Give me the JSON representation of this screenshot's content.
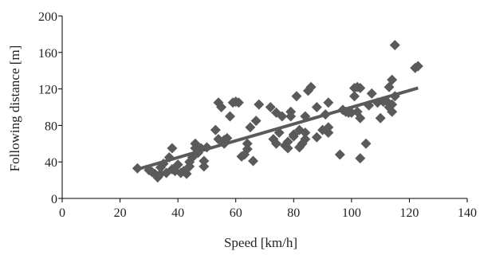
{
  "chart_data": {
    "type": "scatter",
    "title": "",
    "xlabel": "Speed [km/h]",
    "ylabel": "Following distance [m]",
    "xlim": [
      0,
      140
    ],
    "ylim": [
      0,
      200
    ],
    "xticks": [
      "0",
      "20",
      "40",
      "60",
      "80",
      "100",
      "120",
      "140"
    ],
    "yticks": [
      "0",
      "40",
      "80",
      "120",
      "160",
      "200"
    ],
    "grid": false,
    "legend": "none",
    "marker": "diamond",
    "marker_color": "#5a5a5a",
    "trendline_color": "#5a5a5a",
    "series": [
      {
        "points": [
          [
            26,
            33
          ],
          [
            30,
            31
          ],
          [
            31,
            29
          ],
          [
            32,
            27
          ],
          [
            33,
            23
          ],
          [
            34,
            27
          ],
          [
            34,
            34
          ],
          [
            35,
            38
          ],
          [
            36,
            28
          ],
          [
            37,
            45
          ],
          [
            38,
            32
          ],
          [
            38,
            55
          ],
          [
            39,
            30
          ],
          [
            40,
            37
          ],
          [
            41,
            28
          ],
          [
            42,
            30
          ],
          [
            43,
            27
          ],
          [
            44,
            35
          ],
          [
            44,
            40
          ],
          [
            45,
            45
          ],
          [
            46,
            55
          ],
          [
            46,
            60
          ],
          [
            47,
            50
          ],
          [
            48,
            55
          ],
          [
            49,
            35
          ],
          [
            49,
            41
          ],
          [
            50,
            56
          ],
          [
            53,
            75
          ],
          [
            54,
            65
          ],
          [
            54,
            105
          ],
          [
            55,
            100
          ],
          [
            56,
            64
          ],
          [
            56,
            60
          ],
          [
            57,
            66
          ],
          [
            58,
            90
          ],
          [
            59,
            105
          ],
          [
            60,
            106
          ],
          [
            61,
            105
          ],
          [
            62,
            46
          ],
          [
            63,
            48
          ],
          [
            64,
            60
          ],
          [
            64,
            54
          ],
          [
            65,
            78
          ],
          [
            66,
            41
          ],
          [
            67,
            85
          ],
          [
            68,
            103
          ],
          [
            72,
            100
          ],
          [
            73,
            65
          ],
          [
            74,
            60
          ],
          [
            74,
            94
          ],
          [
            75,
            72
          ],
          [
            76,
            90
          ],
          [
            77,
            58
          ],
          [
            78,
            55
          ],
          [
            78,
            62
          ],
          [
            79,
            90
          ],
          [
            79,
            95
          ],
          [
            80,
            68
          ],
          [
            80,
            70
          ],
          [
            81,
            112
          ],
          [
            82,
            56
          ],
          [
            82,
            75
          ],
          [
            83,
            60
          ],
          [
            84,
            65
          ],
          [
            84,
            72
          ],
          [
            84,
            90
          ],
          [
            85,
            118
          ],
          [
            86,
            122
          ],
          [
            88,
            67
          ],
          [
            88,
            100
          ],
          [
            90,
            75
          ],
          [
            91,
            92
          ],
          [
            92,
            72
          ],
          [
            92,
            78
          ],
          [
            92,
            105
          ],
          [
            96,
            48
          ],
          [
            97,
            97
          ],
          [
            98,
            95
          ],
          [
            99,
            94
          ],
          [
            100,
            94
          ],
          [
            101,
            112
          ],
          [
            101,
            121
          ],
          [
            102,
            95
          ],
          [
            102,
            122
          ],
          [
            103,
            88
          ],
          [
            103,
            44
          ],
          [
            103,
            121
          ],
          [
            105,
            60
          ],
          [
            106,
            102
          ],
          [
            107,
            115
          ],
          [
            109,
            105
          ],
          [
            110,
            88
          ],
          [
            111,
            106
          ],
          [
            112,
            107
          ],
          [
            113,
            122
          ],
          [
            113,
            100
          ],
          [
            114,
            103
          ],
          [
            114,
            95
          ],
          [
            114,
            130
          ],
          [
            115,
            112
          ],
          [
            115,
            168
          ],
          [
            122,
            143
          ],
          [
            123,
            145
          ]
        ]
      }
    ],
    "trendline": {
      "x": [
        26,
        123
      ],
      "y": [
        32,
        121
      ]
    }
  }
}
